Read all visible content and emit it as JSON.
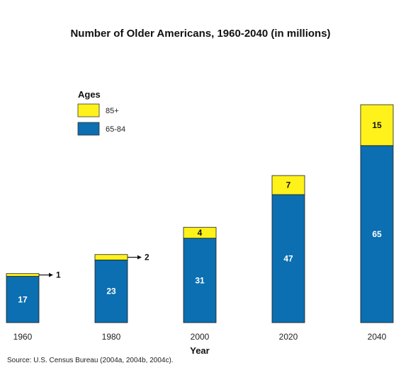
{
  "chart_data": {
    "type": "bar",
    "stacked": true,
    "title": "Number of Older Americans, 1960-2040 (in millions)",
    "xlabel": "Year",
    "ylabel": "",
    "categories": [
      "1960",
      "1980",
      "2000",
      "2020",
      "2040"
    ],
    "series": [
      {
        "name": "65-84",
        "values": [
          17,
          23,
          31,
          47,
          65
        ],
        "color": "#0b6fb1"
      },
      {
        "name": "85+",
        "values": [
          1,
          2,
          4,
          7,
          15
        ],
        "color": "#fff21a"
      }
    ],
    "data_labels": {
      "65-84": [
        "17",
        "23",
        "31",
        "47",
        "65"
      ],
      "85+": [
        "1",
        "2",
        "4",
        "7",
        "15"
      ]
    },
    "legend": {
      "title": "Ages",
      "placement": "top-left"
    },
    "ylim": [
      0,
      80
    ],
    "grid": false,
    "source": "Source: U.S. Census Bureau (2004a, 2004b, 2004c)."
  }
}
